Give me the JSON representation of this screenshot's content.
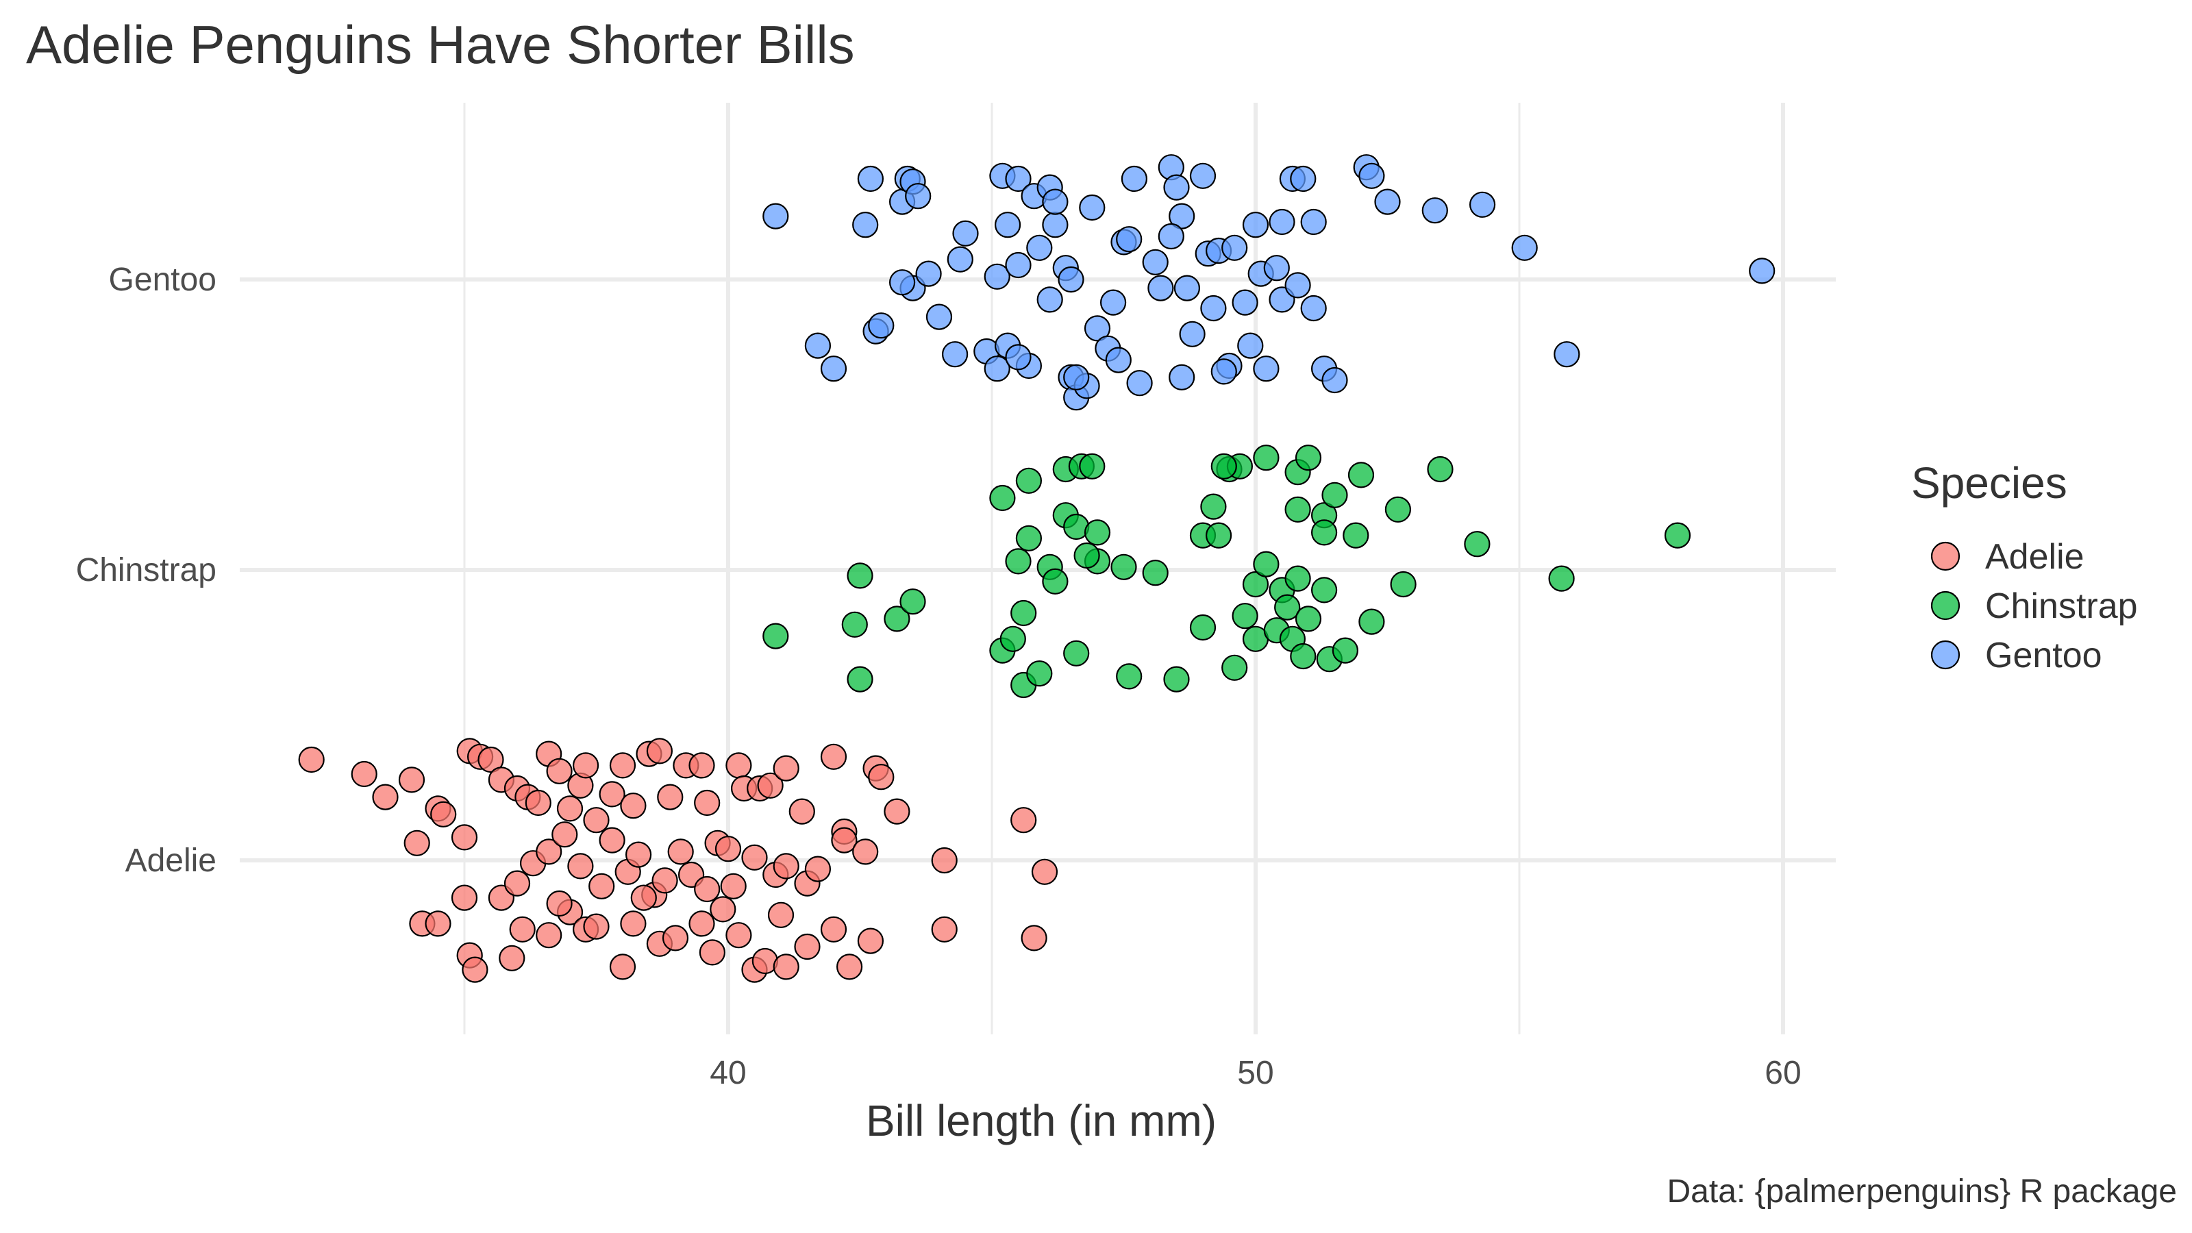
{
  "chart_data": {
    "type": "scatter",
    "title": "Adelie Penguins Have Shorter Bills",
    "xlabel": "Bill length (in mm)",
    "ylabel": "",
    "xlim": [
      31,
      61
    ],
    "xticks": [
      40,
      50,
      60
    ],
    "categories": [
      "Adelie",
      "Chinstrap",
      "Gentoo"
    ],
    "grid": true,
    "legend": {
      "title": "Species",
      "placement": "right"
    },
    "caption": "Data: {palmerpenguins} R package",
    "colors": {
      "Adelie": "#F8766D",
      "Chinstrap": "#00BA38",
      "Gentoo": "#619CFF"
    },
    "series": [
      {
        "name": "Adelie",
        "color": "#F8766D",
        "points": [
          {
            "x": 32.1,
            "j": 0.35
          },
          {
            "x": 33.1,
            "j": 0.3
          },
          {
            "x": 33.5,
            "j": 0.22
          },
          {
            "x": 34.0,
            "j": 0.28
          },
          {
            "x": 34.5,
            "j": 0.18
          },
          {
            "x": 34.6,
            "j": 0.16
          },
          {
            "x": 35.0,
            "j": 0.08
          },
          {
            "x": 35.1,
            "j": 0.38
          },
          {
            "x": 35.3,
            "j": 0.36
          },
          {
            "x": 35.5,
            "j": 0.35
          },
          {
            "x": 35.7,
            "j": 0.28
          },
          {
            "x": 36.0,
            "j": 0.25
          },
          {
            "x": 36.2,
            "j": 0.22
          },
          {
            "x": 36.4,
            "j": 0.2
          },
          {
            "x": 36.6,
            "j": 0.37
          },
          {
            "x": 36.8,
            "j": 0.31
          },
          {
            "x": 37.0,
            "j": 0.18
          },
          {
            "x": 37.2,
            "j": 0.26
          },
          {
            "x": 37.5,
            "j": 0.14
          },
          {
            "x": 37.8,
            "j": 0.23
          },
          {
            "x": 38.0,
            "j": 0.33
          },
          {
            "x": 38.2,
            "j": 0.19
          },
          {
            "x": 38.5,
            "j": 0.37
          },
          {
            "x": 38.7,
            "j": 0.38
          },
          {
            "x": 38.9,
            "j": 0.22
          },
          {
            "x": 39.2,
            "j": 0.33
          },
          {
            "x": 39.5,
            "j": 0.33
          },
          {
            "x": 39.6,
            "j": 0.2
          },
          {
            "x": 40.2,
            "j": 0.33
          },
          {
            "x": 40.3,
            "j": 0.25
          },
          {
            "x": 40.6,
            "j": 0.25
          },
          {
            "x": 40.8,
            "j": 0.26
          },
          {
            "x": 41.1,
            "j": 0.32
          },
          {
            "x": 41.4,
            "j": 0.17
          },
          {
            "x": 42.0,
            "j": 0.36
          },
          {
            "x": 42.2,
            "j": 0.1
          },
          {
            "x": 42.8,
            "j": 0.32
          },
          {
            "x": 42.9,
            "j": 0.29
          },
          {
            "x": 43.2,
            "j": 0.17
          },
          {
            "x": 45.6,
            "j": 0.14
          },
          {
            "x": 34.1,
            "j": 0.06
          },
          {
            "x": 35.0,
            "j": -0.13
          },
          {
            "x": 35.7,
            "j": -0.13
          },
          {
            "x": 36.0,
            "j": -0.08
          },
          {
            "x": 36.3,
            "j": -0.01
          },
          {
            "x": 36.6,
            "j": 0.03
          },
          {
            "x": 36.9,
            "j": 0.09
          },
          {
            "x": 37.2,
            "j": -0.02
          },
          {
            "x": 37.6,
            "j": -0.09
          },
          {
            "x": 37.8,
            "j": 0.07
          },
          {
            "x": 38.1,
            "j": -0.04
          },
          {
            "x": 38.3,
            "j": 0.02
          },
          {
            "x": 38.6,
            "j": -0.12
          },
          {
            "x": 38.8,
            "j": -0.07
          },
          {
            "x": 39.1,
            "j": 0.03
          },
          {
            "x": 39.3,
            "j": -0.05
          },
          {
            "x": 39.6,
            "j": -0.1
          },
          {
            "x": 39.8,
            "j": 0.06
          },
          {
            "x": 40.1,
            "j": -0.09
          },
          {
            "x": 40.5,
            "j": 0.01
          },
          {
            "x": 40.9,
            "j": -0.05
          },
          {
            "x": 41.1,
            "j": -0.02
          },
          {
            "x": 41.5,
            "j": -0.08
          },
          {
            "x": 41.7,
            "j": -0.03
          },
          {
            "x": 42.2,
            "j": 0.07
          },
          {
            "x": 42.6,
            "j": 0.03
          },
          {
            "x": 44.1,
            "j": 0.0
          },
          {
            "x": 46.0,
            "j": -0.04
          },
          {
            "x": 34.2,
            "j": -0.22
          },
          {
            "x": 34.5,
            "j": -0.22
          },
          {
            "x": 35.1,
            "j": -0.33
          },
          {
            "x": 35.2,
            "j": -0.38
          },
          {
            "x": 35.9,
            "j": -0.34
          },
          {
            "x": 36.1,
            "j": -0.24
          },
          {
            "x": 36.6,
            "j": -0.26
          },
          {
            "x": 37.0,
            "j": -0.18
          },
          {
            "x": 37.3,
            "j": -0.24
          },
          {
            "x": 37.5,
            "j": -0.23
          },
          {
            "x": 38.0,
            "j": -0.37
          },
          {
            "x": 38.2,
            "j": -0.22
          },
          {
            "x": 38.7,
            "j": -0.29
          },
          {
            "x": 39.0,
            "j": -0.27
          },
          {
            "x": 39.5,
            "j": -0.22
          },
          {
            "x": 39.7,
            "j": -0.32
          },
          {
            "x": 40.2,
            "j": -0.26
          },
          {
            "x": 40.5,
            "j": -0.38
          },
          {
            "x": 40.7,
            "j": -0.35
          },
          {
            "x": 41.1,
            "j": -0.37
          },
          {
            "x": 41.5,
            "j": -0.3
          },
          {
            "x": 42.0,
            "j": -0.24
          },
          {
            "x": 42.3,
            "j": -0.37
          },
          {
            "x": 42.7,
            "j": -0.28
          },
          {
            "x": 44.1,
            "j": -0.24
          },
          {
            "x": 45.8,
            "j": -0.27
          },
          {
            "x": 36.8,
            "j": -0.15
          },
          {
            "x": 38.4,
            "j": -0.13
          },
          {
            "x": 39.9,
            "j": -0.17
          },
          {
            "x": 41.0,
            "j": -0.19
          },
          {
            "x": 40.0,
            "j": 0.04
          },
          {
            "x": 37.3,
            "j": 0.33
          }
        ]
      },
      {
        "name": "Chinstrap",
        "color": "#00BA38",
        "points": [
          {
            "x": 40.9,
            "j": -0.23
          },
          {
            "x": 42.4,
            "j": -0.19
          },
          {
            "x": 42.5,
            "j": -0.38
          },
          {
            "x": 42.5,
            "j": -0.02
          },
          {
            "x": 43.2,
            "j": -0.17
          },
          {
            "x": 43.5,
            "j": -0.11
          },
          {
            "x": 45.2,
            "j": 0.25
          },
          {
            "x": 45.2,
            "j": -0.28
          },
          {
            "x": 45.4,
            "j": -0.24
          },
          {
            "x": 45.5,
            "j": 0.03
          },
          {
            "x": 45.6,
            "j": -0.4
          },
          {
            "x": 45.7,
            "j": 0.11
          },
          {
            "x": 45.7,
            "j": 0.31
          },
          {
            "x": 45.9,
            "j": -0.36
          },
          {
            "x": 46.1,
            "j": 0.01
          },
          {
            "x": 46.2,
            "j": -0.04
          },
          {
            "x": 46.4,
            "j": 0.35
          },
          {
            "x": 46.4,
            "j": 0.19
          },
          {
            "x": 46.6,
            "j": 0.15
          },
          {
            "x": 46.6,
            "j": -0.29
          },
          {
            "x": 46.7,
            "j": 0.36
          },
          {
            "x": 46.9,
            "j": 0.36
          },
          {
            "x": 47.0,
            "j": 0.13
          },
          {
            "x": 47.0,
            "j": 0.03
          },
          {
            "x": 47.5,
            "j": 0.01
          },
          {
            "x": 47.6,
            "j": -0.37
          },
          {
            "x": 48.1,
            "j": -0.01
          },
          {
            "x": 48.5,
            "j": -0.38
          },
          {
            "x": 49.0,
            "j": -0.2
          },
          {
            "x": 49.0,
            "j": 0.12
          },
          {
            "x": 49.2,
            "j": 0.22
          },
          {
            "x": 49.3,
            "j": 0.12
          },
          {
            "x": 49.5,
            "j": 0.35
          },
          {
            "x": 49.6,
            "j": -0.34
          },
          {
            "x": 49.7,
            "j": 0.36
          },
          {
            "x": 49.8,
            "j": -0.16
          },
          {
            "x": 50.0,
            "j": -0.05
          },
          {
            "x": 50.0,
            "j": -0.24
          },
          {
            "x": 50.2,
            "j": 0.39
          },
          {
            "x": 50.2,
            "j": 0.02
          },
          {
            "x": 50.4,
            "j": -0.21
          },
          {
            "x": 50.5,
            "j": -0.07
          },
          {
            "x": 50.6,
            "j": -0.13
          },
          {
            "x": 50.7,
            "j": -0.24
          },
          {
            "x": 50.8,
            "j": 0.21
          },
          {
            "x": 50.8,
            "j": 0.34
          },
          {
            "x": 50.9,
            "j": -0.3
          },
          {
            "x": 51.0,
            "j": 0.39
          },
          {
            "x": 51.0,
            "j": -0.17
          },
          {
            "x": 51.3,
            "j": -0.07
          },
          {
            "x": 51.3,
            "j": 0.19
          },
          {
            "x": 51.4,
            "j": -0.31
          },
          {
            "x": 51.5,
            "j": 0.26
          },
          {
            "x": 51.7,
            "j": -0.28
          },
          {
            "x": 51.9,
            "j": 0.12
          },
          {
            "x": 52.0,
            "j": 0.33
          },
          {
            "x": 52.2,
            "j": -0.18
          },
          {
            "x": 52.7,
            "j": 0.21
          },
          {
            "x": 52.8,
            "j": -0.05
          },
          {
            "x": 53.5,
            "j": 0.35
          },
          {
            "x": 54.2,
            "j": 0.09
          },
          {
            "x": 55.8,
            "j": -0.03
          },
          {
            "x": 58.0,
            "j": 0.12
          },
          {
            "x": 51.3,
            "j": 0.13
          },
          {
            "x": 50.8,
            "j": -0.03
          },
          {
            "x": 46.8,
            "j": 0.05
          },
          {
            "x": 49.4,
            "j": 0.36
          },
          {
            "x": 45.6,
            "j": -0.15
          }
        ]
      },
      {
        "name": "Gentoo",
        "color": "#619CFF",
        "points": [
          {
            "x": 40.9,
            "j": 0.22
          },
          {
            "x": 41.7,
            "j": -0.23
          },
          {
            "x": 42.0,
            "j": -0.31
          },
          {
            "x": 42.6,
            "j": 0.19
          },
          {
            "x": 42.7,
            "j": 0.35
          },
          {
            "x": 42.8,
            "j": -0.18
          },
          {
            "x": 42.9,
            "j": -0.16
          },
          {
            "x": 43.3,
            "j": 0.27
          },
          {
            "x": 43.4,
            "j": 0.35
          },
          {
            "x": 43.5,
            "j": 0.34
          },
          {
            "x": 43.6,
            "j": 0.29
          },
          {
            "x": 43.5,
            "j": -0.03
          },
          {
            "x": 43.3,
            "j": -0.01
          },
          {
            "x": 43.8,
            "j": 0.02
          },
          {
            "x": 44.0,
            "j": -0.13
          },
          {
            "x": 44.4,
            "j": 0.07
          },
          {
            "x": 44.5,
            "j": 0.16
          },
          {
            "x": 44.9,
            "j": -0.25
          },
          {
            "x": 45.1,
            "j": 0.01
          },
          {
            "x": 45.1,
            "j": -0.31
          },
          {
            "x": 45.2,
            "j": 0.36
          },
          {
            "x": 45.3,
            "j": 0.19
          },
          {
            "x": 45.3,
            "j": -0.23
          },
          {
            "x": 45.5,
            "j": 0.35
          },
          {
            "x": 45.5,
            "j": 0.05
          },
          {
            "x": 45.7,
            "j": -0.3
          },
          {
            "x": 45.8,
            "j": 0.29
          },
          {
            "x": 45.9,
            "j": 0.11
          },
          {
            "x": 46.1,
            "j": 0.32
          },
          {
            "x": 46.1,
            "j": -0.07
          },
          {
            "x": 46.2,
            "j": 0.19
          },
          {
            "x": 46.4,
            "j": 0.04
          },
          {
            "x": 46.5,
            "j": 0.0
          },
          {
            "x": 46.5,
            "j": -0.34
          },
          {
            "x": 46.6,
            "j": -0.41
          },
          {
            "x": 46.8,
            "j": -0.37
          },
          {
            "x": 46.9,
            "j": 0.25
          },
          {
            "x": 47.0,
            "j": -0.17
          },
          {
            "x": 47.2,
            "j": -0.24
          },
          {
            "x": 47.3,
            "j": -0.08
          },
          {
            "x": 47.5,
            "j": 0.13
          },
          {
            "x": 47.6,
            "j": 0.14
          },
          {
            "x": 47.7,
            "j": 0.35
          },
          {
            "x": 47.8,
            "j": -0.36
          },
          {
            "x": 48.1,
            "j": 0.06
          },
          {
            "x": 48.2,
            "j": -0.03
          },
          {
            "x": 48.4,
            "j": 0.39
          },
          {
            "x": 48.5,
            "j": 0.32
          },
          {
            "x": 48.6,
            "j": 0.22
          },
          {
            "x": 48.7,
            "j": -0.03
          },
          {
            "x": 48.8,
            "j": -0.19
          },
          {
            "x": 49.0,
            "j": 0.36
          },
          {
            "x": 49.1,
            "j": 0.09
          },
          {
            "x": 49.2,
            "j": -0.1
          },
          {
            "x": 49.3,
            "j": 0.1
          },
          {
            "x": 49.5,
            "j": -0.3
          },
          {
            "x": 49.6,
            "j": 0.11
          },
          {
            "x": 49.8,
            "j": -0.08
          },
          {
            "x": 49.9,
            "j": -0.23
          },
          {
            "x": 50.0,
            "j": 0.19
          },
          {
            "x": 50.1,
            "j": 0.02
          },
          {
            "x": 50.2,
            "j": -0.31
          },
          {
            "x": 50.4,
            "j": 0.04
          },
          {
            "x": 50.5,
            "j": 0.2
          },
          {
            "x": 50.5,
            "j": -0.07
          },
          {
            "x": 50.7,
            "j": 0.35
          },
          {
            "x": 50.8,
            "j": -0.02
          },
          {
            "x": 51.1,
            "j": -0.1
          },
          {
            "x": 51.1,
            "j": 0.2
          },
          {
            "x": 51.3,
            "j": -0.31
          },
          {
            "x": 51.5,
            "j": -0.35
          },
          {
            "x": 52.1,
            "j": 0.39
          },
          {
            "x": 52.2,
            "j": 0.36
          },
          {
            "x": 52.5,
            "j": 0.27
          },
          {
            "x": 53.4,
            "j": 0.24
          },
          {
            "x": 54.3,
            "j": 0.26
          },
          {
            "x": 55.1,
            "j": 0.11
          },
          {
            "x": 55.9,
            "j": -0.26
          },
          {
            "x": 59.6,
            "j": 0.03
          },
          {
            "x": 46.6,
            "j": -0.34
          },
          {
            "x": 47.4,
            "j": -0.28
          },
          {
            "x": 48.6,
            "j": -0.34
          },
          {
            "x": 49.4,
            "j": -0.32
          },
          {
            "x": 45.5,
            "j": -0.27
          },
          {
            "x": 44.3,
            "j": -0.26
          },
          {
            "x": 46.2,
            "j": 0.27
          },
          {
            "x": 48.4,
            "j": 0.15
          },
          {
            "x": 50.9,
            "j": 0.35
          }
        ]
      }
    ]
  }
}
